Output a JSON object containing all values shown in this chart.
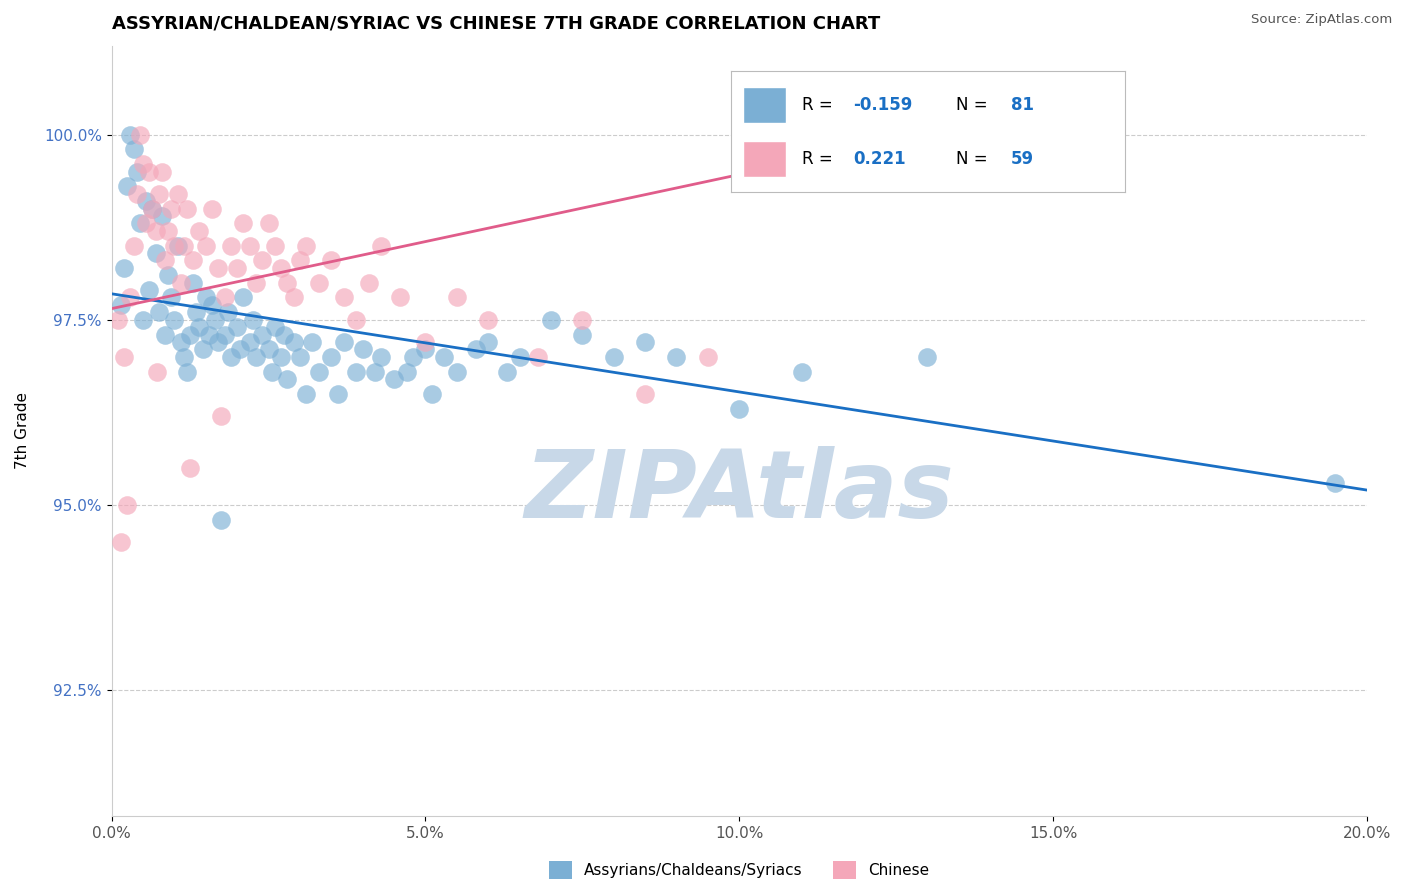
{
  "title": "ASSYRIAN/CHALDEAN/SYRIAC VS CHINESE 7TH GRADE CORRELATION CHART",
  "source_text": "Source: ZipAtlas.com",
  "xlabel_vals": [
    0.0,
    5.0,
    10.0,
    15.0,
    20.0
  ],
  "ylabel_vals": [
    92.5,
    95.0,
    97.5,
    100.0
  ],
  "xmin": 0.0,
  "xmax": 20.0,
  "ymin": 90.8,
  "ymax": 101.2,
  "blue_label": "Assyrians/Chaldeans/Syriacs",
  "pink_label": "Chinese",
  "blue_R": -0.159,
  "blue_N": 81,
  "pink_R": 0.221,
  "pink_N": 59,
  "blue_color": "#7bafd4",
  "pink_color": "#f4a7b9",
  "blue_line_color": "#1a6fc4",
  "pink_line_color": "#e05c8a",
  "watermark": "ZIPAtlas",
  "watermark_color": "#c8d8e8",
  "blue_line_x0": 0.0,
  "blue_line_y0": 97.85,
  "blue_line_x1": 20.0,
  "blue_line_y1": 95.2,
  "pink_line_x0": 0.0,
  "pink_line_y0": 97.65,
  "pink_line_x1": 10.5,
  "pink_line_y1": 99.55,
  "blue_x": [
    0.15,
    0.2,
    0.25,
    0.3,
    0.35,
    0.4,
    0.45,
    0.5,
    0.55,
    0.6,
    0.65,
    0.7,
    0.75,
    0.8,
    0.85,
    0.9,
    0.95,
    1.0,
    1.05,
    1.1,
    1.15,
    1.2,
    1.25,
    1.3,
    1.35,
    1.4,
    1.45,
    1.5,
    1.55,
    1.6,
    1.65,
    1.7,
    1.8,
    1.85,
    1.9,
    2.0,
    2.05,
    2.1,
    2.2,
    2.25,
    2.3,
    2.4,
    2.5,
    2.55,
    2.6,
    2.7,
    2.75,
    2.8,
    2.9,
    3.0,
    3.1,
    3.2,
    3.3,
    3.5,
    3.6,
    3.7,
    3.9,
    4.0,
    4.2,
    4.3,
    4.5,
    4.7,
    4.8,
    5.0,
    5.1,
    5.3,
    5.5,
    5.8,
    6.0,
    6.3,
    6.5,
    7.0,
    7.5,
    8.0,
    8.5,
    9.0,
    10.0,
    11.0,
    13.0,
    19.5,
    1.75
  ],
  "blue_y": [
    97.7,
    98.2,
    99.3,
    100.0,
    99.8,
    99.5,
    98.8,
    97.5,
    99.1,
    97.9,
    99.0,
    98.4,
    97.6,
    98.9,
    97.3,
    98.1,
    97.8,
    97.5,
    98.5,
    97.2,
    97.0,
    96.8,
    97.3,
    98.0,
    97.6,
    97.4,
    97.1,
    97.8,
    97.3,
    97.7,
    97.5,
    97.2,
    97.3,
    97.6,
    97.0,
    97.4,
    97.1,
    97.8,
    97.2,
    97.5,
    97.0,
    97.3,
    97.1,
    96.8,
    97.4,
    97.0,
    97.3,
    96.7,
    97.2,
    97.0,
    96.5,
    97.2,
    96.8,
    97.0,
    96.5,
    97.2,
    96.8,
    97.1,
    96.8,
    97.0,
    96.7,
    96.8,
    97.0,
    97.1,
    96.5,
    97.0,
    96.8,
    97.1,
    97.2,
    96.8,
    97.0,
    97.5,
    97.3,
    97.0,
    97.2,
    97.0,
    96.3,
    96.8,
    97.0,
    95.3,
    94.8
  ],
  "pink_x": [
    0.1,
    0.2,
    0.3,
    0.35,
    0.4,
    0.45,
    0.5,
    0.55,
    0.6,
    0.65,
    0.7,
    0.75,
    0.8,
    0.85,
    0.9,
    0.95,
    1.0,
    1.05,
    1.1,
    1.15,
    1.2,
    1.3,
    1.4,
    1.5,
    1.6,
    1.7,
    1.8,
    1.9,
    2.0,
    2.1,
    2.2,
    2.3,
    2.4,
    2.5,
    2.6,
    2.7,
    2.8,
    2.9,
    3.0,
    3.1,
    3.3,
    3.5,
    3.7,
    3.9,
    4.1,
    4.3,
    4.6,
    5.0,
    5.5,
    6.0,
    6.8,
    7.5,
    8.5,
    9.5,
    0.25,
    0.15,
    0.72,
    1.25,
    1.75
  ],
  "pink_y": [
    97.5,
    97.0,
    97.8,
    98.5,
    99.2,
    100.0,
    99.6,
    98.8,
    99.5,
    99.0,
    98.7,
    99.2,
    99.5,
    98.3,
    98.7,
    99.0,
    98.5,
    99.2,
    98.0,
    98.5,
    99.0,
    98.3,
    98.7,
    98.5,
    99.0,
    98.2,
    97.8,
    98.5,
    98.2,
    98.8,
    98.5,
    98.0,
    98.3,
    98.8,
    98.5,
    98.2,
    98.0,
    97.8,
    98.3,
    98.5,
    98.0,
    98.3,
    97.8,
    97.5,
    98.0,
    98.5,
    97.8,
    97.2,
    97.8,
    97.5,
    97.0,
    97.5,
    96.5,
    97.0,
    95.0,
    94.5,
    96.8,
    95.5,
    96.2
  ]
}
